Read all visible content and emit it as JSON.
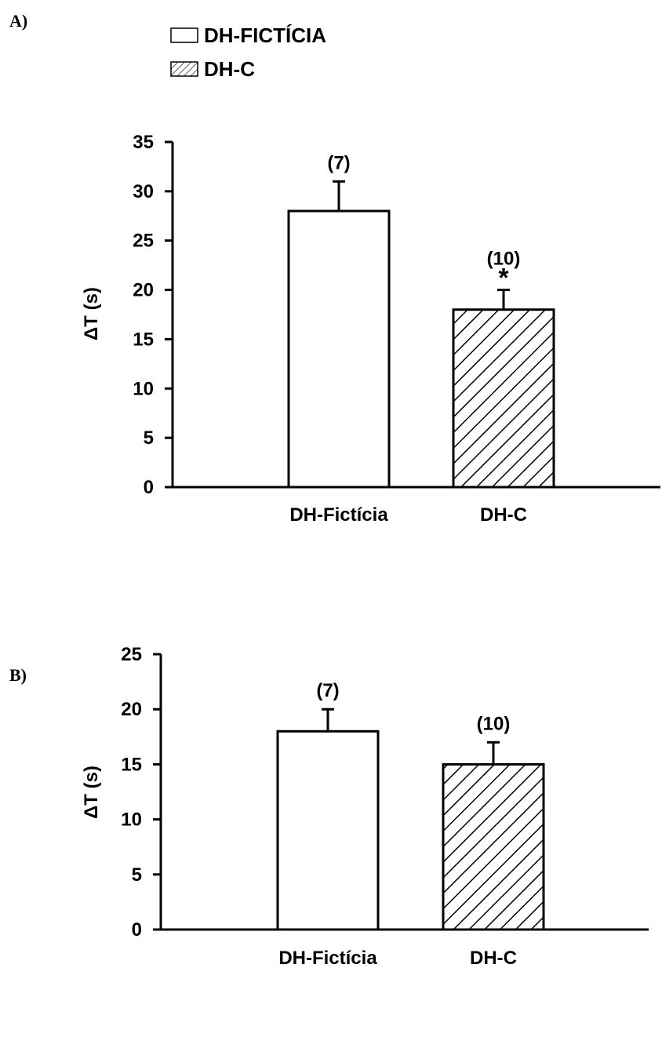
{
  "legend": {
    "entries": [
      {
        "label": "DH-FICTÍCIA",
        "pattern": "solid"
      },
      {
        "label": "DH-C",
        "pattern": "hatch"
      }
    ]
  },
  "colors": {
    "ink": "#000000",
    "bar_fill": "#ffffff"
  },
  "chart_data": [
    {
      "panel": "A)",
      "type": "bar",
      "categories": [
        "DH-Fictícia",
        "DH-C"
      ],
      "values": [
        28,
        18
      ],
      "errors": [
        3,
        2
      ],
      "n_labels": [
        "(7)",
        "(10)"
      ],
      "significance": [
        "",
        "*"
      ],
      "patterns": [
        "solid",
        "hatch"
      ],
      "ylabel": "ΔT (s)",
      "ylim": [
        0,
        35
      ],
      "yticks": [
        0,
        5,
        10,
        15,
        20,
        25,
        30,
        35
      ]
    },
    {
      "panel": "B)",
      "type": "bar",
      "categories": [
        "DH-Fictícia",
        "DH-C"
      ],
      "values": [
        18,
        15
      ],
      "errors": [
        2,
        2
      ],
      "n_labels": [
        "(7)",
        "(10)"
      ],
      "significance": [
        "",
        ""
      ],
      "patterns": [
        "solid",
        "hatch"
      ],
      "ylabel": "ΔT (s)",
      "ylim": [
        0,
        25
      ],
      "yticks": [
        0,
        5,
        10,
        15,
        20,
        25
      ]
    }
  ]
}
